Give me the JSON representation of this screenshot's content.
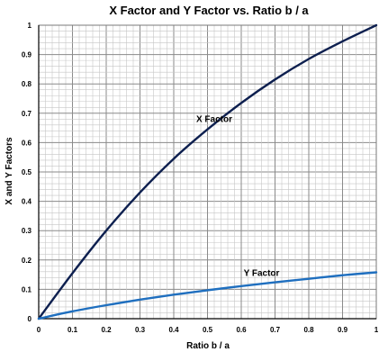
{
  "chart_data": {
    "type": "line",
    "title": "X Factor and Y Factor  vs.  Ratio  b / a",
    "xlabel": "Ratio  b / a",
    "ylabel": "X and Y Factors",
    "xlim": [
      0,
      1
    ],
    "ylim": [
      0,
      1
    ],
    "x_ticks": [
      "0",
      "0.1",
      "0.2",
      "0.3",
      "0.4",
      "0.5",
      "0.6",
      "0.7",
      "0.8",
      "0.9",
      "1"
    ],
    "y_ticks": [
      "0",
      "0.1",
      "0.2",
      "0.3",
      "0.4",
      "0.5",
      "0.6",
      "0.7",
      "0.8",
      "0.9",
      "1"
    ],
    "grid": true,
    "minor_grid_divisions": 5,
    "legend": "none (inline series labels)",
    "series": [
      {
        "name": "X Factor",
        "color": "#0d1f4f",
        "x": [
          0,
          0.1,
          0.2,
          0.3,
          0.4,
          0.5,
          0.6,
          0.7,
          0.8,
          0.9,
          1.0
        ],
        "y": [
          0,
          0.155,
          0.3,
          0.43,
          0.545,
          0.645,
          0.735,
          0.815,
          0.885,
          0.945,
          1.0
        ]
      },
      {
        "name": "Y Factor",
        "color": "#1f6fbf",
        "x": [
          0,
          0.1,
          0.2,
          0.3,
          0.4,
          0.5,
          0.6,
          0.7,
          0.8,
          0.9,
          1.0
        ],
        "y": [
          0,
          0.025,
          0.046,
          0.065,
          0.082,
          0.097,
          0.111,
          0.124,
          0.136,
          0.148,
          0.158
        ]
      }
    ],
    "annotations": [
      {
        "text": "X Factor",
        "x": 0.52,
        "y": 0.67,
        "series": 0
      },
      {
        "text": "Y Factor",
        "x": 0.66,
        "y": 0.145,
        "series": 1
      }
    ]
  }
}
